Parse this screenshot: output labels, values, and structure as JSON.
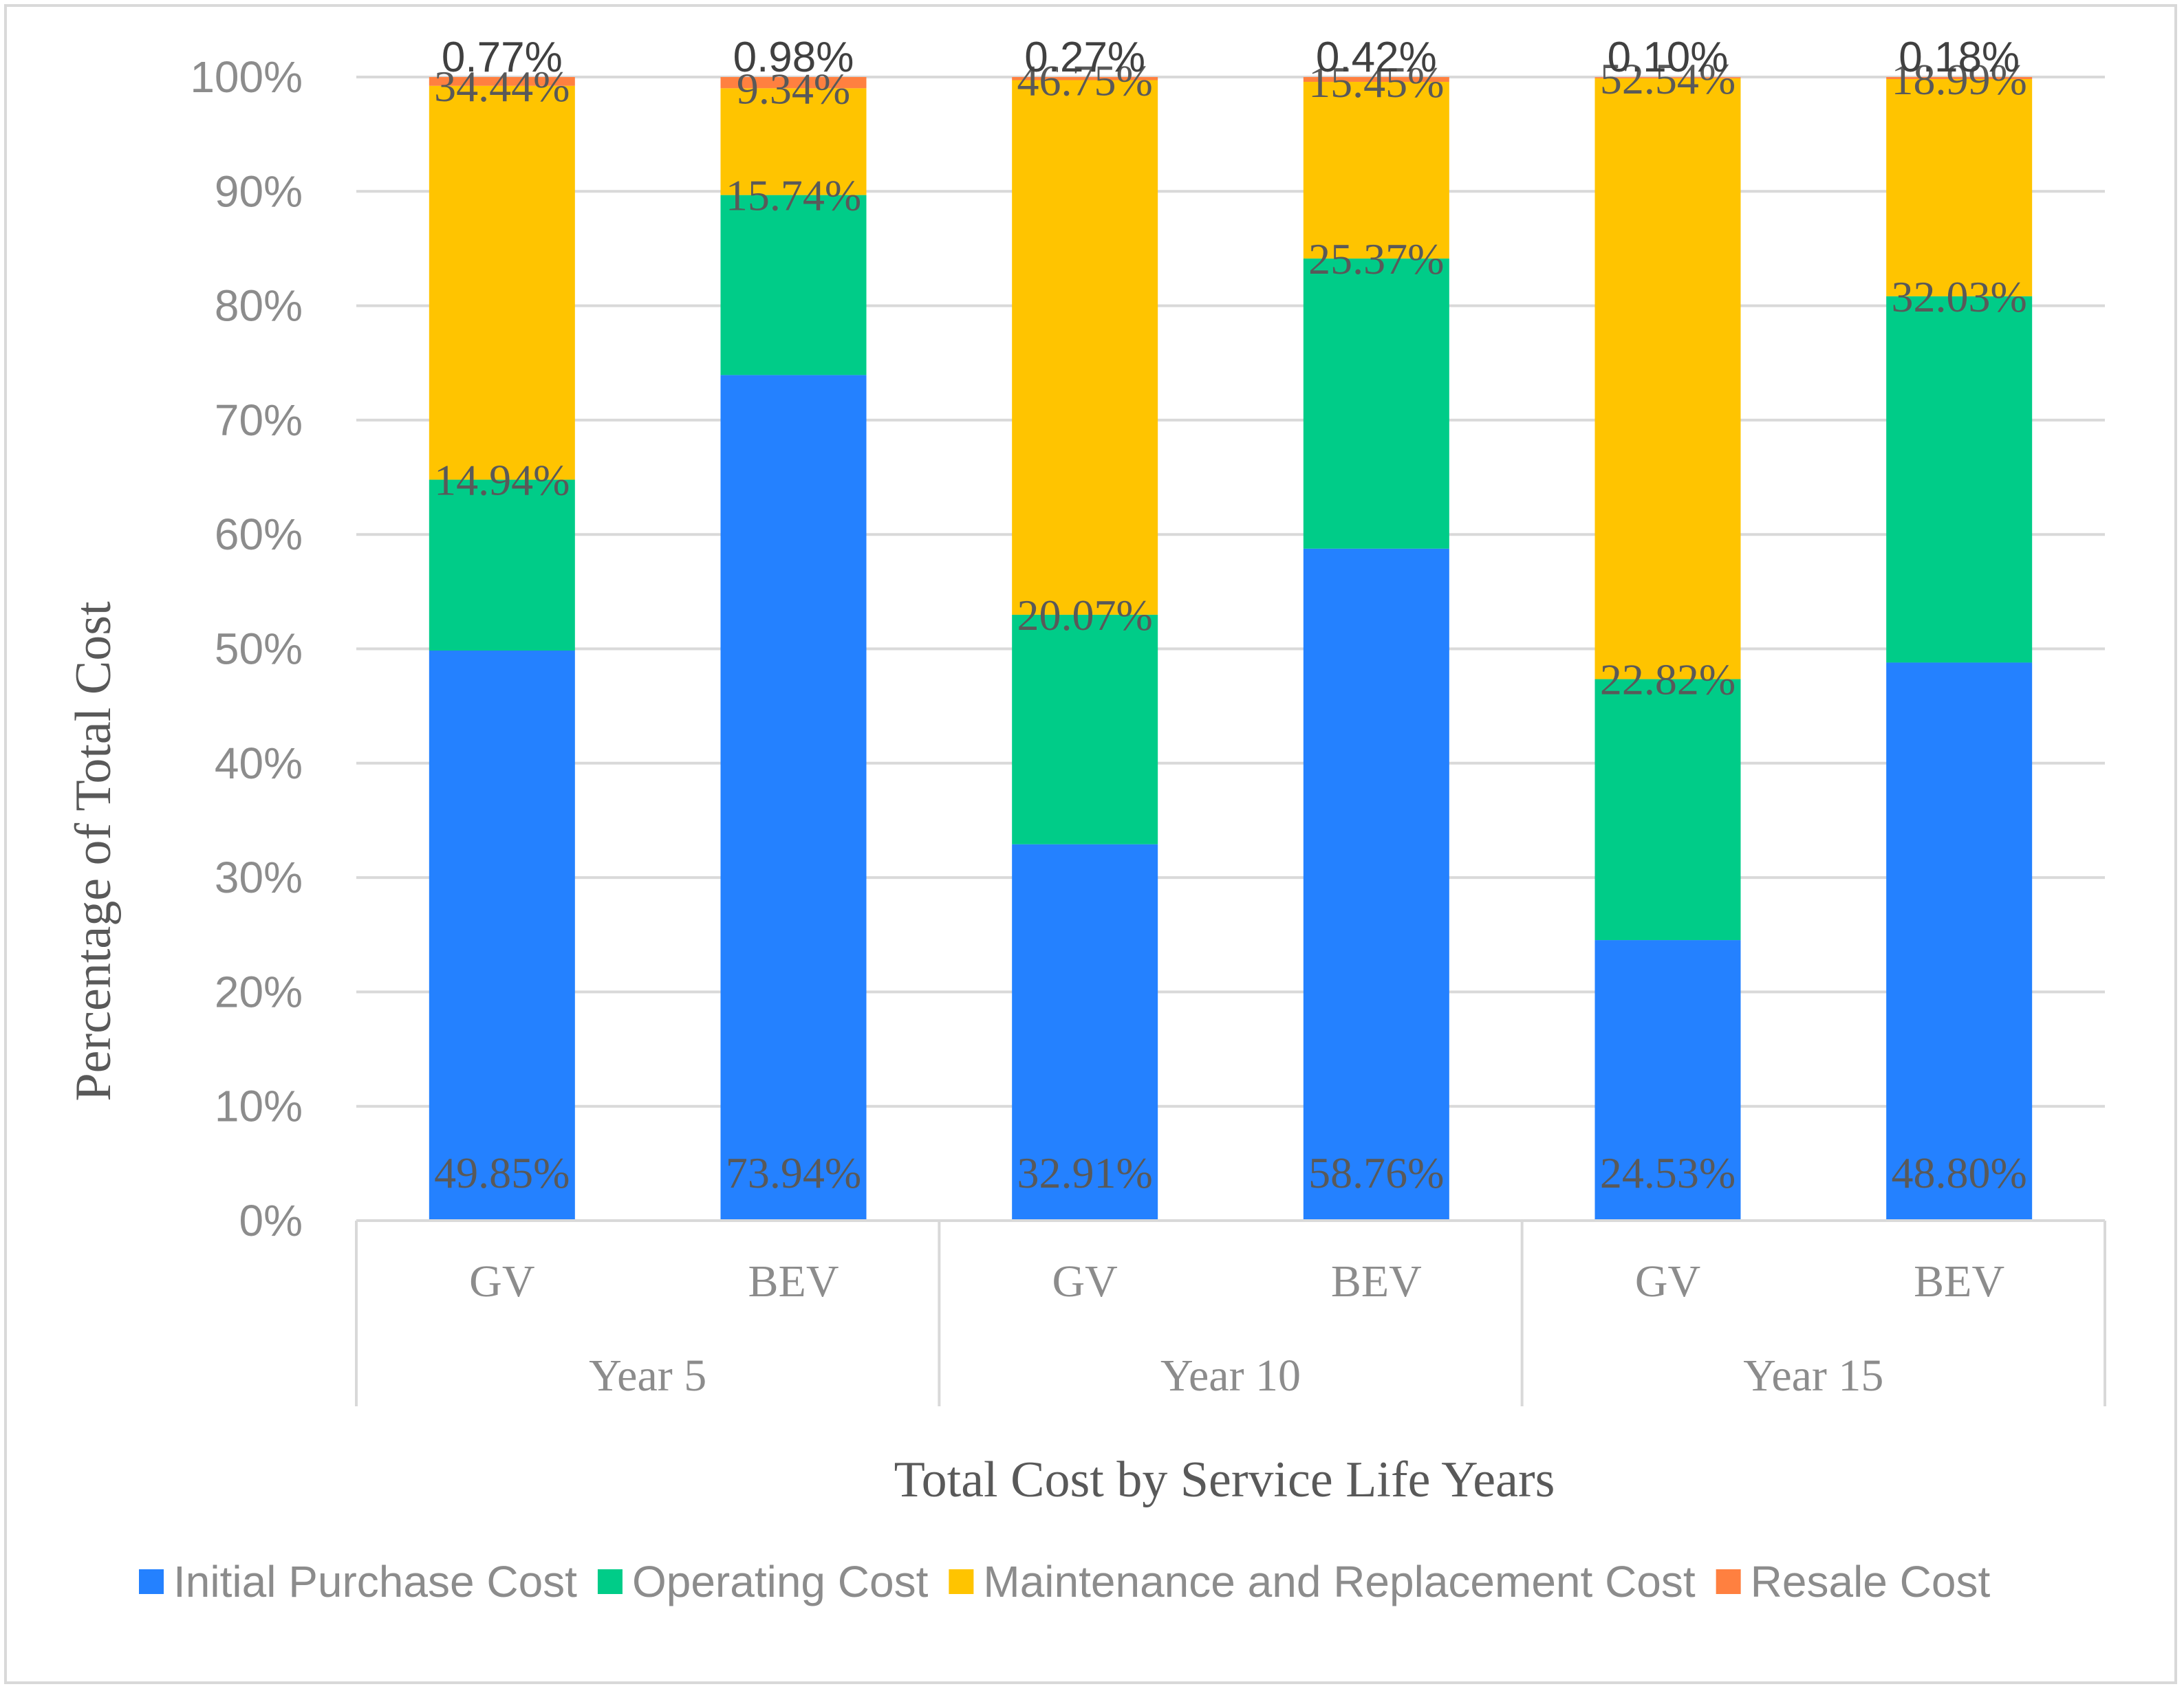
{
  "chart_data": {
    "type": "bar",
    "stacked": true,
    "normalized_percent": true,
    "groups": [
      "Year 5",
      "Year 10",
      "Year 15"
    ],
    "categories": [
      "GV",
      "BEV",
      "GV",
      "BEV",
      "GV",
      "BEV"
    ],
    "series": [
      {
        "name": "Initial Purchase Cost",
        "color": "#2481ff",
        "values": [
          49.85,
          73.94,
          32.91,
          58.76,
          24.53,
          48.8
        ],
        "labels": [
          "49.85%",
          "73.94%",
          "32.91%",
          "58.76%",
          "24.53%",
          "48.80%"
        ]
      },
      {
        "name": "Operating Cost",
        "color": "#00cc88",
        "values": [
          14.94,
          15.74,
          20.07,
          25.37,
          22.82,
          32.03
        ],
        "labels": [
          "14.94%",
          "15.74%",
          "20.07%",
          "25.37%",
          "22.82%",
          "32.03%"
        ]
      },
      {
        "name": "Maintenance and Replacement Cost",
        "color": "#ffc400",
        "values": [
          34.44,
          9.34,
          46.75,
          15.45,
          52.54,
          18.99
        ],
        "labels": [
          "34.44%",
          "9.34%",
          "46.75%",
          "15.45%",
          "52.54%",
          "18.99%"
        ]
      },
      {
        "name": "Resale Cost",
        "color": "#ff8040",
        "values": [
          0.77,
          0.98,
          0.27,
          0.42,
          0.1,
          0.18
        ],
        "labels": [
          "0.77%",
          "0.98%",
          "0.27%",
          "0.42%",
          "0.10%",
          "0.18%"
        ]
      }
    ],
    "title": "",
    "xlabel": "Total Cost by Service Life Years",
    "ylabel": "Percentage of Total Cost",
    "ylim": [
      0,
      100
    ],
    "yticks": [
      "0%",
      "10%",
      "20%",
      "30%",
      "40%",
      "50%",
      "60%",
      "70%",
      "80%",
      "90%",
      "100%"
    ],
    "grid": true,
    "legend": "bottom"
  }
}
